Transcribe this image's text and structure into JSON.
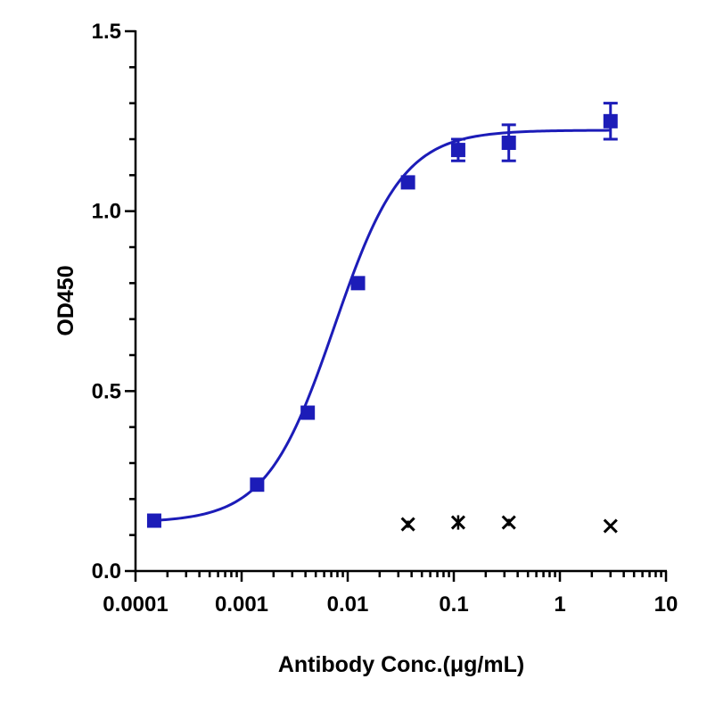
{
  "chart_data": {
    "type": "scatter",
    "xlabel": "Antibody Conc.(μg/mL)",
    "ylabel": "OD450",
    "xscale": "log",
    "xlim": [
      0.0001,
      10
    ],
    "ylim": [
      0.0,
      1.5
    ],
    "x_tick_labels": [
      "0.0001",
      "0.001",
      "0.01",
      "0.1",
      "1",
      "10"
    ],
    "y_tick_labels": [
      "0.0",
      "0.5",
      "1.0",
      "1.5"
    ],
    "grid": false,
    "legend": "none",
    "series": [
      {
        "marker": "square",
        "color": "#1c1cb8",
        "fit": "4PL sigmoid",
        "points": [
          {
            "x": 0.00015,
            "y": 0.14,
            "err": 0.0
          },
          {
            "x": 0.0014,
            "y": 0.24,
            "err": 0.0
          },
          {
            "x": 0.0042,
            "y": 0.44,
            "err": 0.0
          },
          {
            "x": 0.0125,
            "y": 0.8,
            "err": 0.0
          },
          {
            "x": 0.037,
            "y": 1.08,
            "err": 0.0
          },
          {
            "x": 0.11,
            "y": 1.17,
            "err": 0.03
          },
          {
            "x": 0.33,
            "y": 1.19,
            "err": 0.05
          },
          {
            "x": 3.0,
            "y": 1.25,
            "err": 0.05
          }
        ]
      },
      {
        "marker": "x",
        "color": "#000000",
        "points": [
          {
            "x": 0.037,
            "y": 0.13,
            "err": 0.01
          },
          {
            "x": 0.11,
            "y": 0.135,
            "err": 0.02
          },
          {
            "x": 0.33,
            "y": 0.135,
            "err": 0.01
          },
          {
            "x": 3.0,
            "y": 0.125,
            "err": 0.005
          }
        ]
      }
    ]
  }
}
